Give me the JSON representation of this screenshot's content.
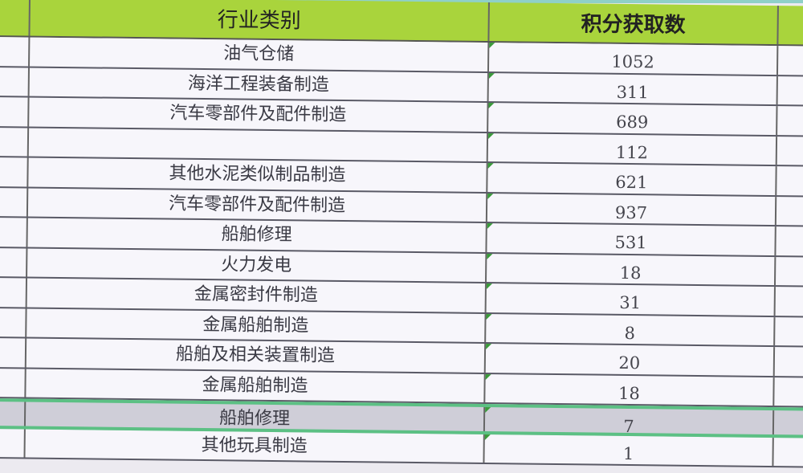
{
  "table": {
    "headers": [
      "行业类别",
      "积分获取数"
    ],
    "rows": [
      {
        "category": "油气仓储",
        "points": "1052"
      },
      {
        "category": "海洋工程装备制造",
        "points": "311"
      },
      {
        "category": "汽车零部件及配件制造",
        "points": "689"
      },
      {
        "category": "",
        "points": "112"
      },
      {
        "category": "其他水泥类似制品制造",
        "points": "621"
      },
      {
        "category": "汽车零部件及配件制造",
        "points": "937"
      },
      {
        "category": "船舶修理",
        "points": "531"
      },
      {
        "category": "火力发电",
        "points": "18"
      },
      {
        "category": "金属密封件制造",
        "points": "31"
      },
      {
        "category": "金属船舶制造",
        "points": "8"
      },
      {
        "category": "船舶及相关装置制造",
        "points": "20"
      },
      {
        "category": "金属船舶制造",
        "points": "18"
      },
      {
        "category": "船舶修理",
        "points": "7"
      },
      {
        "category": "其他玩具制造",
        "points": "1"
      }
    ],
    "selected_row_index": 12
  },
  "colors": {
    "header_bg": "#a9d43c",
    "selection_border": "#5cc084",
    "selected_row_bg": "#cfced8"
  }
}
